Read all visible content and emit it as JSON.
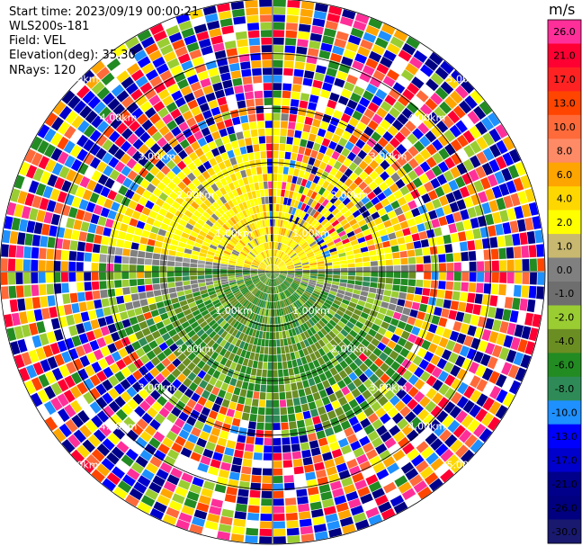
{
  "header": {
    "start_time": "Start time: 2023/09/19 00:00:21",
    "station": "WLS200s-181",
    "field": "Field: VEL",
    "elevation": "Elevation(deg): 35.30",
    "nrays": "NRays: 120"
  },
  "colorbar": {
    "unit": "m/s",
    "levels": [
      "26.0",
      "21.0",
      "17.0",
      "13.0",
      "10.0",
      "8.0",
      "6.0",
      "4.0",
      "2.0",
      "1.0",
      "0.0",
      "-1.0",
      "-2.0",
      "-4.0",
      "-6.0",
      "-8.0",
      "-10.0",
      "-13.0",
      "-17.0",
      "-21.0",
      "-26.0",
      "-30.0"
    ],
    "colors": [
      "#ff2f9a",
      "#ff0033",
      "#ff2222",
      "#ff4500",
      "#ff6a3a",
      "#ff8a66",
      "#ffa500",
      "#ffd700",
      "#ffff00",
      "#c8b870",
      "#808080",
      "#6e6e6e",
      "#9acd32",
      "#6b8e23",
      "#228b22",
      "#2e8b57",
      "#1e90ff",
      "#0000ff",
      "#0000cd",
      "#00008b",
      "#000080",
      "#191970"
    ]
  },
  "chart_data": {
    "type": "heatmap",
    "title": "",
    "ppi": {
      "n_rays": 120,
      "range_unit": "km",
      "max_range_km": 5.0,
      "range_rings_km": [
        1.0,
        2.0,
        3.0,
        4.0,
        5.0
      ],
      "ring_labels": [
        "1.00km",
        "2.00km",
        "3.00km",
        "4.00km",
        "5.00km"
      ],
      "cardinal_axes": true
    }
  }
}
